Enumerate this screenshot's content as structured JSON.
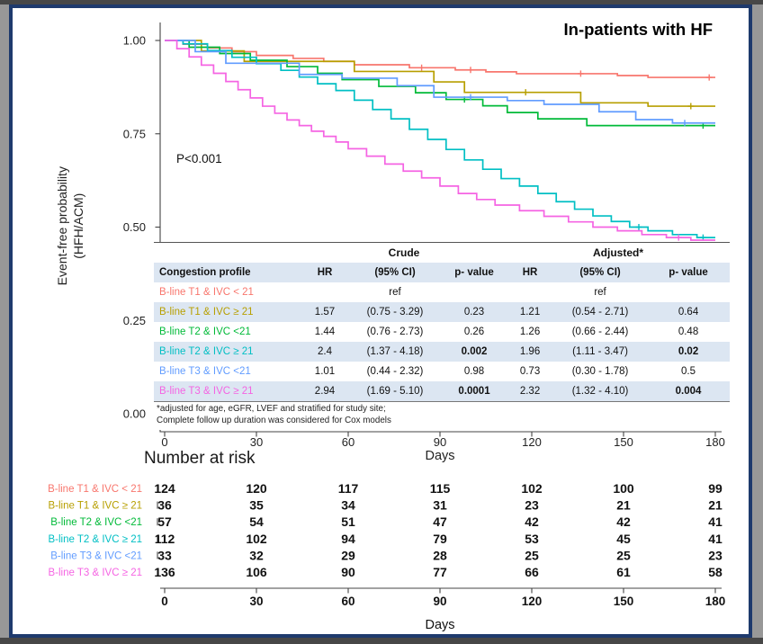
{
  "palette": {
    "frame_border": "#1e3a6d",
    "outer_background": "#989898",
    "table_shade": "#dce6f2",
    "axis_color": "#444444"
  },
  "chart_data": {
    "type": "line",
    "subtype": "kaplan-meier-step",
    "title": "In-patients with HF",
    "xlabel": "Days",
    "ylabel_lines": [
      "Event-free probability",
      "(HFH/ACM)"
    ],
    "xlim": [
      0,
      180
    ],
    "ylim": [
      0,
      1
    ],
    "grid": false,
    "xticks": [
      0,
      30,
      60,
      90,
      120,
      150,
      180
    ],
    "yticks": [
      {
        "value": 1.0,
        "label": "1.00"
      },
      {
        "value": 0.75,
        "label": "0.75"
      },
      {
        "value": 0.5,
        "label": "0.50"
      },
      {
        "value": 0.25,
        "label": "0.25"
      },
      {
        "value": 0.0,
        "label": "0.00"
      }
    ],
    "annotations": [
      {
        "text": "P<0.001"
      }
    ],
    "series": [
      {
        "name": "B-line T1 & IVC < 21",
        "color": "#F8766D",
        "points": [
          [
            0,
            1
          ],
          [
            6,
            0.99
          ],
          [
            14,
            0.98
          ],
          [
            22,
            0.97
          ],
          [
            30,
            0.96
          ],
          [
            42,
            0.952
          ],
          [
            52,
            0.944
          ],
          [
            62,
            0.935
          ],
          [
            80,
            0.927
          ],
          [
            95,
            0.921
          ],
          [
            105,
            0.916
          ],
          [
            115,
            0.911
          ],
          [
            148,
            0.906
          ],
          [
            158,
            0.901
          ],
          [
            180,
            0.901
          ]
        ],
        "censors": [
          [
            84,
            0.927
          ],
          [
            100,
            0.921
          ],
          [
            136,
            0.911
          ],
          [
            178,
            0.901
          ]
        ]
      },
      {
        "name": "B-line T1 & IVC ≥ 21",
        "color": "#B79F00",
        "points": [
          [
            0,
            1
          ],
          [
            12,
            0.972
          ],
          [
            26,
            0.944
          ],
          [
            62,
            0.917
          ],
          [
            88,
            0.889
          ],
          [
            98,
            0.861
          ],
          [
            136,
            0.833
          ],
          [
            158,
            0.824
          ],
          [
            180,
            0.824
          ]
        ],
        "censors": [
          [
            118,
            0.861
          ],
          [
            172,
            0.824
          ]
        ]
      },
      {
        "name": "B-line T2 & IVC <21",
        "color": "#00BA38",
        "points": [
          [
            0,
            1
          ],
          [
            8,
            0.982
          ],
          [
            18,
            0.965
          ],
          [
            28,
            0.947
          ],
          [
            40,
            0.93
          ],
          [
            50,
            0.912
          ],
          [
            58,
            0.895
          ],
          [
            70,
            0.877
          ],
          [
            82,
            0.86
          ],
          [
            92,
            0.842
          ],
          [
            104,
            0.825
          ],
          [
            112,
            0.807
          ],
          [
            122,
            0.79
          ],
          [
            138,
            0.772
          ],
          [
            180,
            0.772
          ]
        ],
        "censors": [
          [
            98,
            0.842
          ],
          [
            176,
            0.772
          ]
        ]
      },
      {
        "name": "B-line T2 & IVC ≥ 21",
        "color": "#00BFC4",
        "points": [
          [
            0,
            1
          ],
          [
            6,
            0.991
          ],
          [
            14,
            0.973
          ],
          [
            22,
            0.955
          ],
          [
            30,
            0.938
          ],
          [
            38,
            0.92
          ],
          [
            44,
            0.902
          ],
          [
            50,
            0.884
          ],
          [
            56,
            0.866
          ],
          [
            62,
            0.84
          ],
          [
            68,
            0.815
          ],
          [
            74,
            0.79
          ],
          [
            80,
            0.762
          ],
          [
            86,
            0.735
          ],
          [
            92,
            0.708
          ],
          [
            98,
            0.68
          ],
          [
            104,
            0.655
          ],
          [
            110,
            0.63
          ],
          [
            116,
            0.61
          ],
          [
            122,
            0.59
          ],
          [
            128,
            0.568
          ],
          [
            134,
            0.548
          ],
          [
            140,
            0.53
          ],
          [
            146,
            0.515
          ],
          [
            152,
            0.5
          ],
          [
            158,
            0.49
          ],
          [
            166,
            0.48
          ],
          [
            174,
            0.472
          ],
          [
            180,
            0.472
          ]
        ],
        "censors": [
          [
            155,
            0.5
          ],
          [
            176,
            0.472
          ]
        ]
      },
      {
        "name": "B-line  T3 & IVC <21",
        "color": "#619CFF",
        "points": [
          [
            0,
            1
          ],
          [
            10,
            0.97
          ],
          [
            20,
            0.939
          ],
          [
            44,
            0.909
          ],
          [
            58,
            0.899
          ],
          [
            76,
            0.879
          ],
          [
            88,
            0.848
          ],
          [
            112,
            0.839
          ],
          [
            124,
            0.829
          ],
          [
            142,
            0.809
          ],
          [
            154,
            0.788
          ],
          [
            166,
            0.779
          ],
          [
            180,
            0.779
          ]
        ],
        "censors": [
          [
            100,
            0.848
          ],
          [
            170,
            0.779
          ]
        ]
      },
      {
        "name": "B-line T3 & IVC ≥ 21",
        "color": "#F564E3",
        "points": [
          [
            0,
            1
          ],
          [
            4,
            0.978
          ],
          [
            8,
            0.956
          ],
          [
            12,
            0.934
          ],
          [
            16,
            0.912
          ],
          [
            20,
            0.89
          ],
          [
            24,
            0.868
          ],
          [
            28,
            0.846
          ],
          [
            32,
            0.824
          ],
          [
            36,
            0.805
          ],
          [
            40,
            0.787
          ],
          [
            44,
            0.772
          ],
          [
            48,
            0.757
          ],
          [
            52,
            0.743
          ],
          [
            56,
            0.728
          ],
          [
            60,
            0.71
          ],
          [
            66,
            0.69
          ],
          [
            72,
            0.669
          ],
          [
            78,
            0.65
          ],
          [
            84,
            0.632
          ],
          [
            90,
            0.61
          ],
          [
            96,
            0.59
          ],
          [
            102,
            0.574
          ],
          [
            108,
            0.559
          ],
          [
            116,
            0.544
          ],
          [
            124,
            0.529
          ],
          [
            132,
            0.514
          ],
          [
            140,
            0.5
          ],
          [
            148,
            0.49
          ],
          [
            156,
            0.48
          ],
          [
            164,
            0.472
          ],
          [
            172,
            0.465
          ],
          [
            180,
            0.465
          ]
        ],
        "censors": [
          [
            168,
            0.472
          ]
        ]
      }
    ]
  },
  "hr_table": {
    "group_header": {
      "crude": "Crude",
      "adjusted": "Adjusted*"
    },
    "columns": [
      "Congestion profile",
      "HR",
      "(95% CI)",
      "p- value",
      "HR",
      "(95% CI)",
      "p- value"
    ],
    "rows": [
      {
        "label": "B-line T1 & IVC < 21",
        "color": "#F8766D",
        "shaded": false,
        "crude": {
          "hr": "",
          "ci": "ref",
          "p": ""
        },
        "adjusted": {
          "hr": "",
          "ci": "ref",
          "p": ""
        }
      },
      {
        "label": "B-line T1 & IVC ≥ 21",
        "color": "#B79F00",
        "shaded": true,
        "crude": {
          "hr": "1.57",
          "ci": "(0.75 - 3.29)",
          "p": "0.23"
        },
        "adjusted": {
          "hr": "1.21",
          "ci": "(0.54 - 2.71)",
          "p": "0.64"
        }
      },
      {
        "label": "B-line T2 & IVC <21",
        "color": "#00BA38",
        "shaded": false,
        "crude": {
          "hr": "1.44",
          "ci": "(0.76 - 2.73)",
          "p": "0.26"
        },
        "adjusted": {
          "hr": "1.26",
          "ci": "(0.66 - 2.44)",
          "p": "0.48"
        }
      },
      {
        "label": "B-line T2 & IVC ≥ 21",
        "color": "#00BFC4",
        "shaded": true,
        "crude": {
          "hr": "2.4",
          "ci": "(1.37 - 4.18)",
          "p": "0.002",
          "p_bold": true
        },
        "adjusted": {
          "hr": "1.96",
          "ci": "(1.11 - 3.47)",
          "p": "0.02",
          "p_bold": true
        }
      },
      {
        "label": "B-line  T3 & IVC <21",
        "color": "#619CFF",
        "shaded": false,
        "crude": {
          "hr": "1.01",
          "ci": "(0.44 - 2.32)",
          "p": "0.98"
        },
        "adjusted": {
          "hr": "0.73",
          "ci": "(0.30 - 1.78)",
          "p": "0.5"
        }
      },
      {
        "label": "B-line T3 & IVC ≥ 21",
        "color": "#F564E3",
        "shaded": true,
        "crude": {
          "hr": "2.94",
          "ci": "(1.69 - 5.10)",
          "p": "0.0001",
          "p_bold": true
        },
        "adjusted": {
          "hr": "2.32",
          "ci": "(1.32 - 4.10)",
          "p": "0.004",
          "p_bold": true
        }
      }
    ],
    "footnotes": [
      "*adjusted for age, eGFR, LVEF and stratified for study site;",
      "Complete follow up duration was considered for Cox models"
    ]
  },
  "risk_table": {
    "title": "Number at risk",
    "xlabel": "Days",
    "xticks": [
      0,
      30,
      60,
      90,
      120,
      150,
      180
    ],
    "rows": [
      {
        "label": "B-line T1 & IVC < 21",
        "color": "#F8766D",
        "counts": [
          124,
          120,
          117,
          115,
          102,
          100,
          99
        ]
      },
      {
        "label": "B-line T1 & IVC ≥ 21",
        "color": "#B79F00",
        "counts": [
          36,
          35,
          34,
          31,
          23,
          21,
          21
        ]
      },
      {
        "label": "B-line T2 & IVC <21",
        "color": "#00BA38",
        "counts": [
          57,
          54,
          51,
          47,
          42,
          42,
          41
        ]
      },
      {
        "label": "B-line T2 & IVC ≥ 21",
        "color": "#00BFC4",
        "counts": [
          112,
          102,
          94,
          79,
          53,
          45,
          41
        ]
      },
      {
        "label": "B-line  T3 & IVC <21",
        "color": "#619CFF",
        "counts": [
          33,
          32,
          29,
          28,
          25,
          25,
          23
        ]
      },
      {
        "label": "B-line T3 & IVC ≥ 21",
        "color": "#F564E3",
        "counts": [
          136,
          106,
          90,
          77,
          66,
          61,
          58
        ]
      }
    ]
  }
}
